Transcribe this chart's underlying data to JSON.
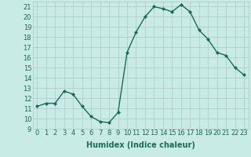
{
  "x": [
    0,
    1,
    2,
    3,
    4,
    5,
    6,
    7,
    8,
    9,
    10,
    11,
    12,
    13,
    14,
    15,
    16,
    17,
    18,
    19,
    20,
    21,
    22,
    23
  ],
  "y": [
    11.2,
    11.5,
    11.5,
    12.7,
    12.4,
    11.2,
    10.2,
    9.7,
    9.6,
    10.6,
    16.5,
    18.5,
    20.0,
    21.0,
    20.8,
    20.5,
    21.2,
    20.5,
    18.7,
    17.8,
    16.5,
    16.2,
    15.0,
    14.3
  ],
  "line_color": "#1a6b5a",
  "marker": "D",
  "marker_size": 2,
  "bg_color": "#c8ebe6",
  "grid_color": "#b0c8c4",
  "xlabel": "Humidex (Indice chaleur)",
  "xlim": [
    -0.5,
    23.5
  ],
  "ylim": [
    9,
    21.5
  ],
  "yticks": [
    9,
    10,
    11,
    12,
    13,
    14,
    15,
    16,
    17,
    18,
    19,
    20,
    21
  ],
  "xticks": [
    0,
    1,
    2,
    3,
    4,
    5,
    6,
    7,
    8,
    9,
    10,
    11,
    12,
    13,
    14,
    15,
    16,
    17,
    18,
    19,
    20,
    21,
    22,
    23
  ],
  "xlabel_fontsize": 7,
  "tick_fontsize": 6,
  "line_width": 1.0
}
